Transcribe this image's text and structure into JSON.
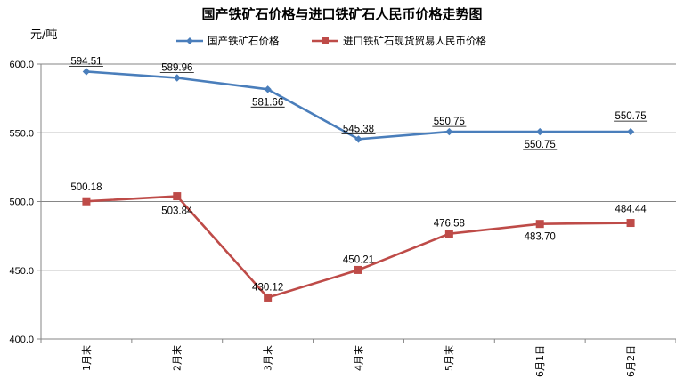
{
  "chart_data": {
    "type": "line",
    "title": "国产铁矿石价格与进口铁矿石人民币价格走势图",
    "ylabel": "元/吨",
    "categories": [
      "1月末",
      "2月末",
      "3月末",
      "4月末",
      "5月末",
      "6月1日",
      "6月2日"
    ],
    "y_ticks": [
      "400.0",
      "450.0",
      "500.0",
      "550.0",
      "600.0"
    ],
    "ylim": [
      400,
      600
    ],
    "grid": "horizontal",
    "legend_position": "top",
    "series": [
      {
        "name": "国产铁矿石价格",
        "color": "#4A7EBB",
        "marker": "diamond",
        "values": [
          594.51,
          589.96,
          581.66,
          545.38,
          550.75,
          550.75,
          550.75
        ],
        "labels": [
          "594.51",
          "589.96",
          "581.66",
          "545.38",
          "550.75",
          "550.75",
          "550.75"
        ]
      },
      {
        "name": "进口铁矿石现货贸易人民币价格",
        "color": "#BE4B48",
        "marker": "square",
        "values": [
          500.18,
          503.84,
          430.12,
          450.21,
          476.58,
          483.7,
          484.44
        ],
        "labels": [
          "500.18",
          "503.84",
          "430.12",
          "450.21",
          "476.58",
          "483.70",
          "484.44"
        ]
      }
    ]
  }
}
